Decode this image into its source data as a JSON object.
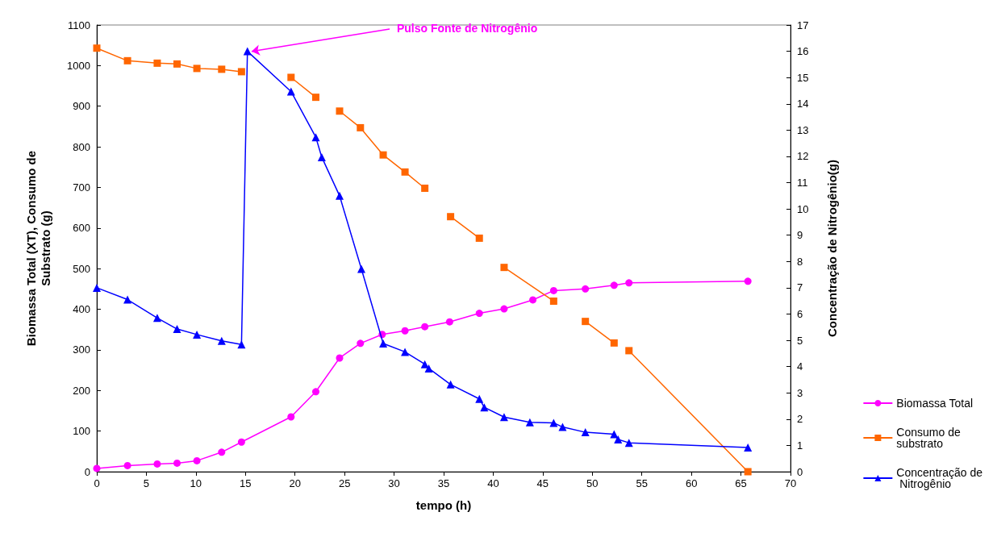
{
  "chart_data": {
    "type": "line",
    "xlabel": "tempo (h)",
    "ylabel": "Biomassa Total (XT), Consumo de Substrato (g)",
    "y2label": "Concentração de Nitrogênio(g)",
    "xlim": [
      0,
      70
    ],
    "xticks": [
      0,
      5,
      10,
      15,
      20,
      25,
      30,
      35,
      40,
      45,
      50,
      55,
      60,
      65,
      70
    ],
    "ylim": [
      0,
      1100
    ],
    "yticks": [
      0,
      100,
      200,
      300,
      400,
      500,
      600,
      700,
      800,
      900,
      1000,
      1100
    ],
    "y2lim": [
      0,
      17
    ],
    "y2ticks": [
      0,
      1,
      2,
      3,
      4,
      5,
      6,
      7,
      8,
      9,
      10,
      11,
      12,
      13,
      14,
      15,
      16,
      17
    ],
    "grid": false,
    "legend": "right",
    "line_style": "solid",
    "annotations": [
      {
        "text": "Pulso Fonte de Nitrogênio",
        "x": 15.2,
        "y": 1035
      }
    ],
    "series": [
      {
        "name": "Biomassa Total",
        "color": "#ff00ff",
        "marker": "circle",
        "x": [
          0,
          3.1,
          6.1,
          8.1,
          10.1,
          12.6,
          14.6,
          19.6,
          22.1,
          24.5,
          26.6,
          28.8,
          31.1,
          33.1,
          35.6,
          38.6,
          41.1,
          44.0,
          46.1,
          49.3,
          52.2,
          53.7,
          65.7
        ],
        "values": [
          8,
          15,
          19,
          21,
          27,
          48,
          73,
          135,
          197,
          280,
          316,
          338,
          347,
          357,
          369,
          390,
          401,
          423,
          446,
          450,
          459,
          465,
          469
        ]
      },
      {
        "name": "Consumo de substrato",
        "color": "#ff6600",
        "marker": "square",
        "x": [
          0,
          3.1,
          6.1,
          8.1,
          10.1,
          12.6,
          14.6,
          15.2,
          19.6,
          22.1,
          22.7,
          24.5,
          26.6,
          28.9,
          31.1,
          33.1,
          33.5,
          35.7,
          38.6,
          39.1,
          41.1,
          46.1,
          47.0,
          49.3,
          52.2,
          52.6,
          53.7,
          65.7
        ],
        "values": [
          1043,
          1012,
          1006,
          1004,
          993,
          991,
          985,
          null,
          971,
          922,
          null,
          888,
          847,
          780,
          738,
          698,
          null,
          628,
          575,
          null,
          503,
          420,
          null,
          370,
          317,
          null,
          298,
          0
        ]
      },
      {
        "name": "Concentração de Nitrogênio",
        "color": "#0000ff",
        "marker": "triangle",
        "axis": "y2",
        "x": [
          0,
          3.1,
          6.1,
          8.1,
          10.1,
          12.6,
          14.6,
          15.2,
          19.6,
          22.1,
          22.7,
          24.5,
          26.7,
          28.9,
          31.1,
          33.1,
          33.5,
          35.7,
          38.6,
          39.1,
          41.1,
          43.7,
          46.1,
          47.0,
          49.3,
          52.2,
          52.6,
          53.7,
          65.7
        ],
        "values": [
          7.0,
          6.55,
          5.85,
          5.43,
          5.22,
          4.98,
          4.84,
          16.0,
          14.47,
          12.73,
          11.97,
          10.5,
          7.72,
          4.88,
          4.56,
          4.09,
          3.93,
          3.32,
          2.77,
          2.45,
          2.08,
          1.88,
          1.86,
          1.7,
          1.5,
          1.43,
          1.23,
          1.1,
          0.92
        ]
      }
    ]
  }
}
